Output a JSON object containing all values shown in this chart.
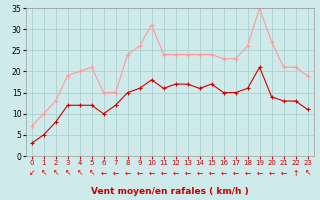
{
  "x": [
    0,
    1,
    2,
    3,
    4,
    5,
    6,
    7,
    8,
    9,
    10,
    11,
    12,
    13,
    14,
    15,
    16,
    17,
    18,
    19,
    20,
    21,
    22,
    23
  ],
  "vent_moyen": [
    3,
    5,
    8,
    12,
    12,
    12,
    10,
    12,
    15,
    16,
    18,
    16,
    17,
    17,
    16,
    17,
    15,
    15,
    16,
    21,
    14,
    13,
    13,
    11
  ],
  "rafales": [
    7,
    10,
    13,
    19,
    20,
    21,
    15,
    15,
    24,
    26,
    31,
    24,
    24,
    24,
    24,
    24,
    23,
    23,
    26,
    35,
    27,
    21,
    21,
    19
  ],
  "bg_color": "#ceeaea",
  "grid_color": "#aed4d4",
  "line_moyen_color": "#cc0000",
  "line_rafales_color": "#ff9999",
  "xlabel": "Vent moyen/en rafales ( km/h )",
  "xlabel_color": "#cc0000",
  "ylim": [
    0,
    35
  ],
  "yticks": [
    0,
    5,
    10,
    15,
    20,
    25,
    30,
    35
  ],
  "xticks": [
    0,
    1,
    2,
    3,
    4,
    5,
    6,
    7,
    8,
    9,
    10,
    11,
    12,
    13,
    14,
    15,
    16,
    17,
    18,
    19,
    20,
    21,
    22,
    23
  ],
  "arrow_chars": [
    "↙",
    "↖",
    "↖",
    "↖",
    "↖",
    "↖",
    "←",
    "←",
    "←",
    "←",
    "←",
    "←",
    "←",
    "←",
    "←",
    "←",
    "←",
    "←",
    "←",
    "←",
    "←",
    "←",
    "↑",
    "↖"
  ]
}
